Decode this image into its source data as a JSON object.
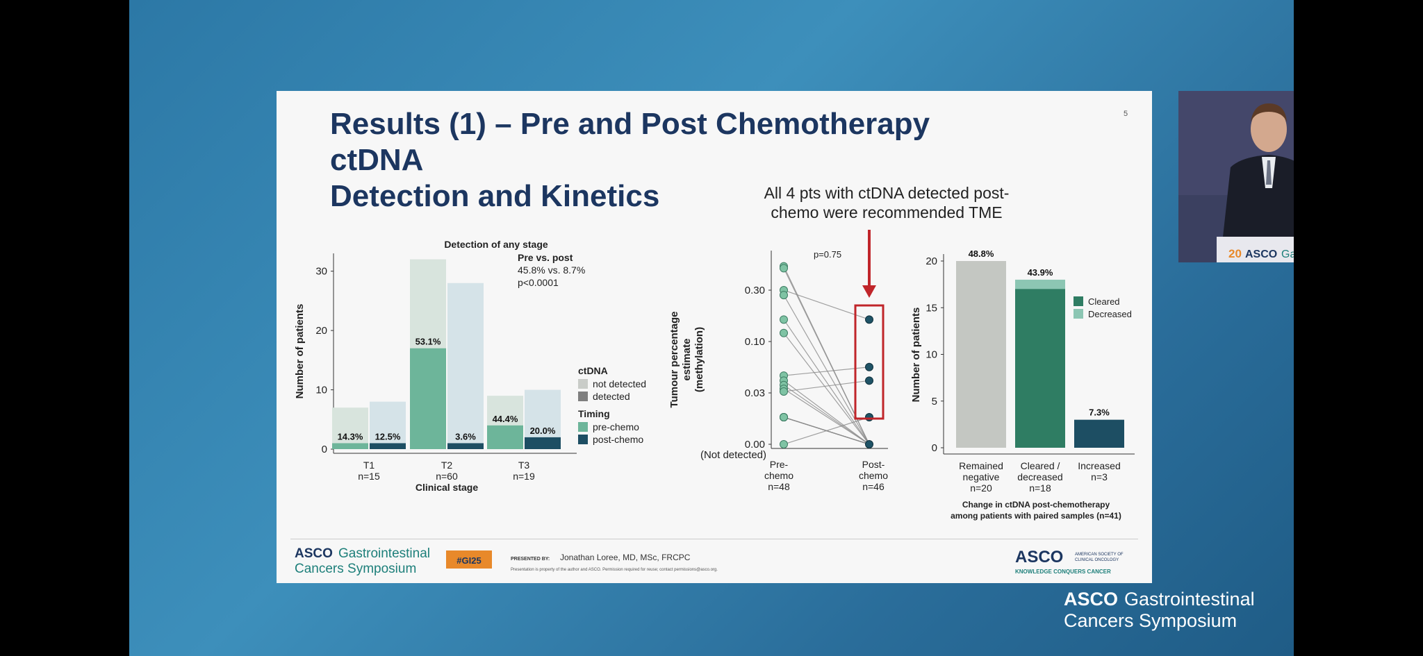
{
  "slide": {
    "title_line1": "Results (1) – Pre and Post Chemotherapy ctDNA",
    "title_line2": "Detection and Kinetics",
    "number": "5",
    "callout_line1": "All 4 pts with ctDNA detected post-",
    "callout_line2": "chemo were recommended TME"
  },
  "colors": {
    "navy": "#1c3660",
    "arrow_red": "#c0252a",
    "teal_pre": "#6db59a",
    "navy_post": "#1d4e63",
    "cleared": "#2f7d63",
    "decreased": "#8cc6b3",
    "gray": "#c4c7c2"
  },
  "chart_data": [
    {
      "type": "bar",
      "categories": [
        "T1\nn=15",
        "T2\nn=60",
        "T3\nn=19"
      ],
      "category_labels": [
        "T1",
        "T2",
        "T3"
      ],
      "category_n": [
        "n=15",
        "n=60",
        "n=19"
      ],
      "xlabel": "Clinical stage",
      "ylabel": "Number of patients",
      "ylim": [
        0,
        33
      ],
      "yticks": [
        0,
        10,
        20,
        30
      ],
      "series": [
        {
          "name": "pre-chemo",
          "detected": [
            1,
            17,
            4
          ],
          "total": [
            7,
            32,
            9
          ],
          "pct_labels": [
            "14.3%",
            "53.1%",
            "44.4%"
          ]
        },
        {
          "name": "post-chemo",
          "detected": [
            1,
            1,
            2
          ],
          "total": [
            8,
            28,
            10
          ],
          "pct_labels": [
            "12.5%",
            "3.6%",
            "20.0%"
          ]
        }
      ],
      "legend": {
        "ctdna_title": "ctDNA",
        "not_detected": "not detected",
        "detected": "detected",
        "timing_title": "Timing",
        "pre": "pre-chemo",
        "post": "post-chemo"
      },
      "annotation": {
        "l1": "Detection of any stage",
        "l2": "Pre vs. post",
        "l3": "45.8% vs. 8.7%",
        "l4": "p<0.0001"
      }
    },
    {
      "type": "scatter",
      "title": "p=0.75",
      "ylabel_l1": "Tumour percentage",
      "ylabel_l2": "estimate",
      "ylabel_l3": "(methylation)",
      "yticks": [
        "0.30",
        "0.10",
        "0.03",
        "0.00"
      ],
      "ytick_extra": "(Not detected)",
      "x_labels": [
        {
          "l1": "Pre-",
          "l2": "chemo",
          "l3": "n=48"
        },
        {
          "l1": "Post-",
          "l2": "chemo",
          "l3": "n=46"
        }
      ],
      "pre_values": [
        0.5,
        0.48,
        0.3,
        0.27,
        0.16,
        0.12,
        0.045,
        0.04,
        0.036,
        0.033,
        0.031,
        0.029,
        0.027,
        0.025,
        0.022,
        0.018,
        0.016,
        0
      ],
      "post_values": [
        0.16,
        0.055,
        0.04,
        0.022,
        0
      ]
    },
    {
      "type": "bar",
      "categories": [
        "Remained negative n=20",
        "Cleared / decreased n=18",
        "Increased n=3"
      ],
      "cat_lines": [
        [
          "Remained",
          "negative",
          "n=20"
        ],
        [
          "Cleared /",
          "decreased",
          "n=18"
        ],
        [
          "Increased",
          "n=3"
        ]
      ],
      "ylabel": "Number of patients",
      "xlabel_l1": "Change in ctDNA post-chemotherapy",
      "xlabel_l2": "among patients with paired samples (n=41)",
      "ylim": [
        0,
        21
      ],
      "yticks": [
        0,
        5,
        10,
        15,
        20
      ],
      "values": [
        20,
        18,
        3
      ],
      "stack": {
        "cleared": 17,
        "decreased": 1
      },
      "pct_labels": [
        "48.8%",
        "43.9%",
        "7.3%"
      ],
      "legend": {
        "cleared": "Cleared",
        "decreased": "Decreased"
      }
    }
  ],
  "footer": {
    "asco_word": "ASCO",
    "gi": "Gastrointestinal",
    "symposium": "Cancers Symposium",
    "hashtag": "#GI25",
    "presented_by": "PRESENTED BY:",
    "presenter": "Jonathan Loree, MD, MSc, FRCPC",
    "notice": "Presentation is property of the author and ASCO. Permission required for reuse; contact permissions@asco.org.",
    "asco_society_l1": "AMERICAN SOCIETY OF",
    "asco_society_l2": "CLINICAL ONCOLOGY",
    "tagline": "KNOWLEDGE CONQUERS CANCER"
  },
  "video": {
    "podium_year": "20",
    "podium_asco": "ASCO",
    "podium_gi": "Gastrointestinal"
  },
  "stage_brand": {
    "asco": "ASCO",
    "gi": "Gastrointestinal",
    "symposium": "Cancers Symposium"
  }
}
